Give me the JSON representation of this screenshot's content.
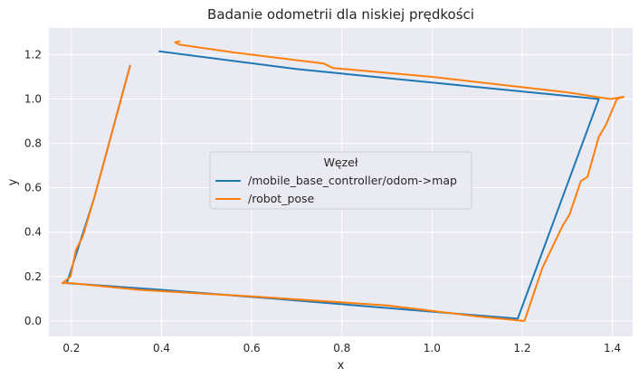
{
  "chart_data": {
    "type": "line",
    "title": "Badanie odometrii dla niskiej prędkości",
    "xlabel": "x",
    "ylabel": "y",
    "xlim": [
      0.15,
      1.445
    ],
    "ylim": [
      -0.07,
      1.32
    ],
    "xticks": [
      0.2,
      0.4,
      0.6,
      0.8,
      1.0,
      1.2,
      1.4
    ],
    "xtick_labels": [
      "0.2",
      "0.4",
      "0.6",
      "0.8",
      "1.0",
      "1.2",
      "1.4"
    ],
    "yticks": [
      0.0,
      0.2,
      0.4,
      0.6,
      0.8,
      1.0,
      1.2
    ],
    "ytick_labels": [
      "0.0",
      "0.2",
      "0.4",
      "0.6",
      "0.8",
      "1.0",
      "1.2"
    ],
    "grid": true,
    "background": "#EAEAF2",
    "legend": {
      "title": "Węzeł",
      "placement": "center"
    },
    "series": [
      {
        "name": "/mobile_base_controller/odom->map",
        "color": "#1F77B4",
        "x": [
          0.33,
          0.25,
          0.19,
          0.4,
          0.65,
          1.19,
          1.37,
          1.02,
          0.7,
          0.395
        ],
        "y": [
          1.15,
          0.55,
          0.17,
          0.14,
          0.1,
          0.01,
          1.0,
          1.07,
          1.135,
          1.215
        ]
      },
      {
        "name": "/robot_pose",
        "color": "#FF7F0E",
        "x": [
          0.33,
          0.25,
          0.225,
          0.21,
          0.198,
          0.18,
          0.2,
          0.35,
          0.6,
          0.9,
          1.1,
          1.2,
          1.205,
          1.225,
          1.245,
          1.29,
          1.305,
          1.33,
          1.345,
          1.37,
          1.385,
          1.41,
          1.425,
          1.395,
          1.3,
          1.0,
          0.78,
          0.76,
          0.56,
          0.44,
          0.43,
          0.44
        ],
        "y": [
          1.15,
          0.55,
          0.38,
          0.32,
          0.2,
          0.17,
          0.17,
          0.14,
          0.11,
          0.07,
          0.02,
          0.0,
          0.0,
          0.12,
          0.24,
          0.43,
          0.48,
          0.63,
          0.65,
          0.83,
          0.88,
          1.0,
          1.01,
          1.0,
          1.03,
          1.1,
          1.14,
          1.16,
          1.21,
          1.245,
          1.255,
          1.26
        ]
      }
    ]
  }
}
